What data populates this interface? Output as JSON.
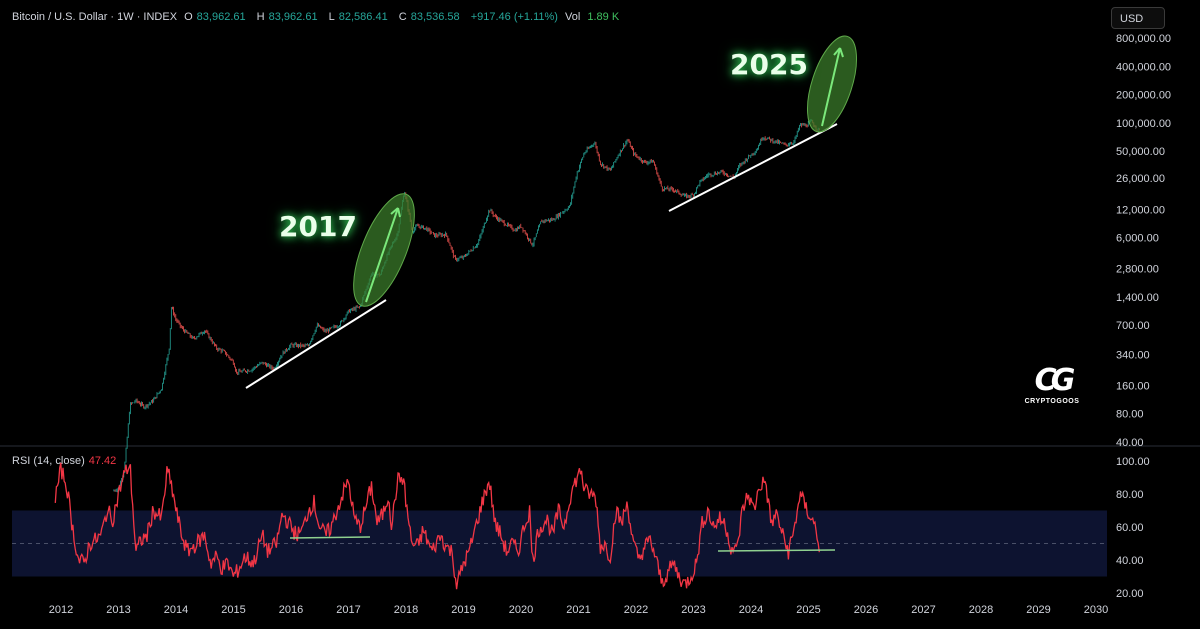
{
  "header": {
    "symbol": "Bitcoin / U.S. Dollar · 1W · INDEX",
    "open_label": "O",
    "open": "83,962.61",
    "high_label": "H",
    "high": "83,962.61",
    "low_label": "L",
    "low": "82,586.41",
    "close_label": "C",
    "close": "83,536.58",
    "change": "+917.46 (+1.11%)",
    "vol_label": "Vol",
    "vol": "1.89 K"
  },
  "currency_button": "USD",
  "rsi_indicator": {
    "label": "RSI (14, close)",
    "value": "47.42"
  },
  "annotations": {
    "a2017": "2017",
    "a2025": "2025"
  },
  "logo": {
    "mark": "CG",
    "text": "CRYPTOGOOS"
  },
  "colors": {
    "up": "#26a69a",
    "down": "#ef5350",
    "rsi_line": "#f23645",
    "ellipse": "#3a7a2a",
    "arrow": "#7be87b",
    "trendline": "#ffffff"
  },
  "chart_data": [
    {
      "type": "line",
      "scale": "log",
      "x_tick_labels": [
        "2012",
        "2013",
        "2014",
        "2015",
        "2016",
        "2017",
        "2018",
        "2019",
        "2020",
        "2021",
        "2022",
        "2023",
        "2024",
        "2025",
        "2026",
        "2027",
        "2028",
        "2029",
        "2030"
      ],
      "y_tick_labels": [
        "800,000.00",
        "400,000.00",
        "200,000.00",
        "100,000.00",
        "50,000.00",
        "26,000.00",
        "12,000.00",
        "6,000.00",
        "2,800.00",
        "1,400.00",
        "700.00",
        "340.00",
        "160.00",
        "80.00",
        "40.00"
      ],
      "series": [
        {
          "values_year_price": [
            [
              2012.9,
              12
            ],
            [
              2013.0,
              13
            ],
            [
              2013.1,
              20
            ],
            [
              2013.2,
              100
            ],
            [
              2013.3,
              110
            ],
            [
              2013.45,
              95
            ],
            [
              2013.6,
              110
            ],
            [
              2013.75,
              150
            ],
            [
              2013.88,
              400
            ],
            [
              2013.92,
              1100
            ],
            [
              2014.0,
              800
            ],
            [
              2014.1,
              650
            ],
            [
              2014.3,
              500
            ],
            [
              2014.5,
              620
            ],
            [
              2014.7,
              400
            ],
            [
              2014.85,
              360
            ],
            [
              2015.0,
              280
            ],
            [
              2015.05,
              220
            ],
            [
              2015.3,
              235
            ],
            [
              2015.5,
              280
            ],
            [
              2015.7,
              240
            ],
            [
              2015.85,
              350
            ],
            [
              2016.0,
              430
            ],
            [
              2016.3,
              420
            ],
            [
              2016.45,
              700
            ],
            [
              2016.6,
              600
            ],
            [
              2016.85,
              720
            ],
            [
              2017.0,
              990
            ],
            [
              2017.2,
              1100
            ],
            [
              2017.4,
              2500
            ],
            [
              2017.55,
              2400
            ],
            [
              2017.7,
              4300
            ],
            [
              2017.85,
              6500
            ],
            [
              2017.97,
              19000
            ],
            [
              2018.05,
              11000
            ],
            [
              2018.1,
              7000
            ],
            [
              2018.2,
              8000
            ],
            [
              2018.35,
              7500
            ],
            [
              2018.5,
              6300
            ],
            [
              2018.7,
              6500
            ],
            [
              2018.85,
              3500
            ],
            [
              2019.0,
              3700
            ],
            [
              2019.25,
              5200
            ],
            [
              2019.45,
              12000
            ],
            [
              2019.55,
              10000
            ],
            [
              2019.75,
              8200
            ],
            [
              2019.9,
              7200
            ],
            [
              2020.0,
              8000
            ],
            [
              2020.2,
              5000
            ],
            [
              2020.35,
              9000
            ],
            [
              2020.55,
              9300
            ],
            [
              2020.7,
              11000
            ],
            [
              2020.85,
              13000
            ],
            [
              2020.97,
              29000
            ],
            [
              2021.1,
              48000
            ],
            [
              2021.28,
              62000
            ],
            [
              2021.38,
              37000
            ],
            [
              2021.55,
              31000
            ],
            [
              2021.7,
              47000
            ],
            [
              2021.85,
              66000
            ],
            [
              2021.97,
              46000
            ],
            [
              2022.15,
              38000
            ],
            [
              2022.3,
              39000
            ],
            [
              2022.45,
              20000
            ],
            [
              2022.65,
              19500
            ],
            [
              2022.85,
              16500
            ],
            [
              2023.0,
              17000
            ],
            [
              2023.1,
              23000
            ],
            [
              2023.25,
              28000
            ],
            [
              2023.5,
              30000
            ],
            [
              2023.7,
              26000
            ],
            [
              2023.8,
              35000
            ],
            [
              2023.95,
              43000
            ],
            [
              2024.1,
              52000
            ],
            [
              2024.2,
              71000
            ],
            [
              2024.4,
              64000
            ],
            [
              2024.6,
              58000
            ],
            [
              2024.75,
              63000
            ],
            [
              2024.85,
              95000
            ],
            [
              2024.97,
              94000
            ],
            [
              2025.05,
              104000
            ],
            [
              2025.15,
              85000
            ],
            [
              2025.2,
              83500
            ]
          ]
        }
      ]
    },
    {
      "type": "line",
      "title": "RSI (14, close)",
      "x_tick_labels": [
        "2012",
        "2013",
        "2014",
        "2015",
        "2016",
        "2017",
        "2018",
        "2019",
        "2020",
        "2021",
        "2022",
        "2023",
        "2024",
        "2025",
        "2026",
        "2027",
        "2028",
        "2029",
        "2030"
      ],
      "y_tick_labels": [
        "100.00",
        "80.00",
        "60.00",
        "40.00",
        "20.00"
      ],
      "band": [
        30,
        70
      ],
      "midline": 50,
      "series": [
        {
          "values_year_rsi": [
            [
              2011.9,
              78
            ],
            [
              2012.0,
              95
            ],
            [
              2012.1,
              85
            ],
            [
              2012.2,
              60
            ],
            [
              2012.3,
              40
            ],
            [
              2012.4,
              38
            ],
            [
              2012.5,
              50
            ],
            [
              2012.6,
              52
            ],
            [
              2012.7,
              55
            ],
            [
              2012.8,
              70
            ],
            [
              2012.9,
              65
            ],
            [
              2013.0,
              80
            ],
            [
              2013.1,
              92
            ],
            [
              2013.2,
              98
            ],
            [
              2013.3,
              45
            ],
            [
              2013.4,
              52
            ],
            [
              2013.5,
              55
            ],
            [
              2013.6,
              70
            ],
            [
              2013.75,
              65
            ],
            [
              2013.85,
              95
            ],
            [
              2013.95,
              80
            ],
            [
              2014.0,
              70
            ],
            [
              2014.1,
              55
            ],
            [
              2014.2,
              45
            ],
            [
              2014.3,
              48
            ],
            [
              2014.5,
              55
            ],
            [
              2014.6,
              38
            ],
            [
              2014.7,
              42
            ],
            [
              2014.8,
              35
            ],
            [
              2014.9,
              38
            ],
            [
              2015.0,
              30
            ],
            [
              2015.1,
              35
            ],
            [
              2015.2,
              42
            ],
            [
              2015.35,
              38
            ],
            [
              2015.5,
              55
            ],
            [
              2015.6,
              45
            ],
            [
              2015.75,
              50
            ],
            [
              2015.85,
              68
            ],
            [
              2016.0,
              60
            ],
            [
              2016.1,
              55
            ],
            [
              2016.2,
              58
            ],
            [
              2016.3,
              70
            ],
            [
              2016.4,
              75
            ],
            [
              2016.5,
              60
            ],
            [
              2016.6,
              55
            ],
            [
              2016.7,
              60
            ],
            [
              2016.8,
              70
            ],
            [
              2016.9,
              80
            ],
            [
              2017.0,
              88
            ],
            [
              2017.1,
              65
            ],
            [
              2017.2,
              60
            ],
            [
              2017.3,
              72
            ],
            [
              2017.4,
              85
            ],
            [
              2017.5,
              62
            ],
            [
              2017.6,
              68
            ],
            [
              2017.7,
              80
            ],
            [
              2017.75,
              60
            ],
            [
              2017.85,
              88
            ],
            [
              2017.95,
              90
            ],
            [
              2018.0,
              75
            ],
            [
              2018.1,
              50
            ],
            [
              2018.2,
              48
            ],
            [
              2018.3,
              58
            ],
            [
              2018.45,
              45
            ],
            [
              2018.6,
              55
            ],
            [
              2018.7,
              48
            ],
            [
              2018.8,
              45
            ],
            [
              2018.88,
              25
            ],
            [
              2018.95,
              32
            ],
            [
              2019.0,
              38
            ],
            [
              2019.1,
              45
            ],
            [
              2019.25,
              65
            ],
            [
              2019.35,
              78
            ],
            [
              2019.45,
              88
            ],
            [
              2019.55,
              62
            ],
            [
              2019.65,
              55
            ],
            [
              2019.75,
              45
            ],
            [
              2019.85,
              50
            ],
            [
              2019.95,
              45
            ],
            [
              2020.05,
              60
            ],
            [
              2020.15,
              70
            ],
            [
              2020.2,
              38
            ],
            [
              2020.3,
              58
            ],
            [
              2020.45,
              65
            ],
            [
              2020.55,
              55
            ],
            [
              2020.65,
              70
            ],
            [
              2020.75,
              60
            ],
            [
              2020.85,
              78
            ],
            [
              2020.95,
              88
            ],
            [
              2021.05,
              95
            ],
            [
              2021.1,
              82
            ],
            [
              2021.2,
              80
            ],
            [
              2021.3,
              78
            ],
            [
              2021.38,
              48
            ],
            [
              2021.45,
              50
            ],
            [
              2021.55,
              42
            ],
            [
              2021.65,
              70
            ],
            [
              2021.75,
              62
            ],
            [
              2021.85,
              75
            ],
            [
              2021.95,
              50
            ],
            [
              2022.05,
              40
            ],
            [
              2022.15,
              48
            ],
            [
              2022.25,
              52
            ],
            [
              2022.35,
              40
            ],
            [
              2022.45,
              26
            ],
            [
              2022.55,
              32
            ],
            [
              2022.65,
              38
            ],
            [
              2022.75,
              30
            ],
            [
              2022.85,
              25
            ],
            [
              2022.95,
              30
            ],
            [
              2023.05,
              38
            ],
            [
              2023.15,
              62
            ],
            [
              2023.25,
              70
            ],
            [
              2023.35,
              60
            ],
            [
              2023.45,
              65
            ],
            [
              2023.55,
              62
            ],
            [
              2023.65,
              48
            ],
            [
              2023.75,
              45
            ],
            [
              2023.85,
              70
            ],
            [
              2023.95,
              80
            ],
            [
              2024.05,
              70
            ],
            [
              2024.15,
              85
            ],
            [
              2024.25,
              88
            ],
            [
              2024.35,
              62
            ],
            [
              2024.45,
              68
            ],
            [
              2024.55,
              55
            ],
            [
              2024.65,
              45
            ],
            [
              2024.75,
              58
            ],
            [
              2024.85,
              80
            ],
            [
              2024.95,
              72
            ],
            [
              2025.05,
              65
            ],
            [
              2025.12,
              60
            ],
            [
              2025.2,
              47
            ]
          ]
        }
      ]
    }
  ]
}
